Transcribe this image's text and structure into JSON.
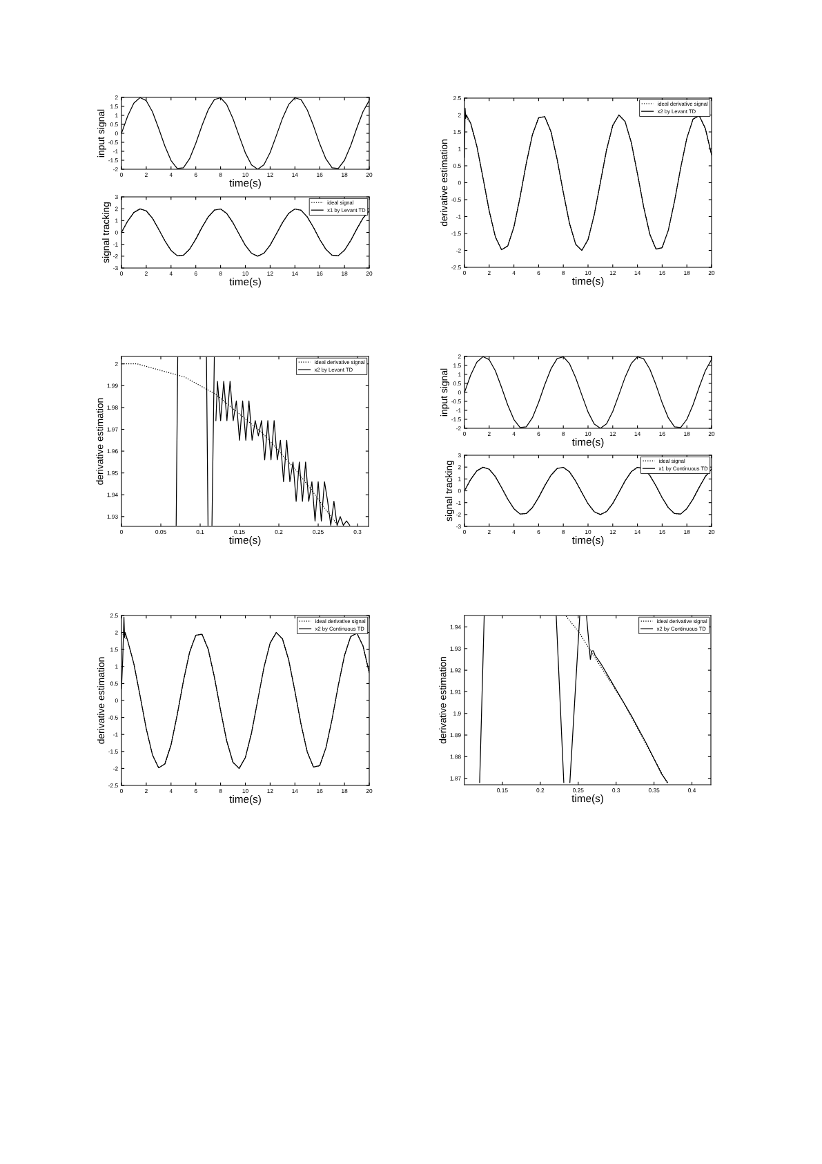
{
  "chart_data": [
    {
      "type": "line",
      "xlabel": "time(s)",
      "ylabel": "input signal",
      "xlim": [
        0,
        20
      ],
      "xticks": [
        0,
        2,
        4,
        6,
        8,
        10,
        12,
        14,
        16,
        18,
        20
      ],
      "ylim": [
        -2,
        2
      ],
      "yticks": [
        -2,
        -1.5,
        -1,
        -0.5,
        0,
        0.5,
        1,
        1.5,
        2
      ],
      "marker": "none",
      "x": [
        0,
        0.5,
        1,
        1.5,
        2,
        2.5,
        3,
        3.5,
        4,
        4.5,
        5,
        5.5,
        6,
        6.5,
        7,
        7.5,
        8,
        8.5,
        9,
        9.5,
        10,
        10.5,
        11,
        11.5,
        12,
        12.5,
        13,
        13.5,
        14,
        14.5,
        15,
        15.5,
        16,
        16.5,
        17,
        17.5,
        18,
        18.5,
        19,
        19.5,
        20
      ],
      "series": [
        {
          "color": "#000000",
          "line_style": "solid",
          "values": [
            0,
            0.96,
            1.68,
            1.99,
            1.82,
            1.2,
            0.28,
            -0.7,
            -1.51,
            -1.96,
            -1.92,
            -1.41,
            -0.56,
            0.43,
            1.31,
            1.88,
            1.98,
            1.6,
            0.82,
            -0.15,
            -1.09,
            -1.76,
            -2.0,
            -1.75,
            -1.07,
            -0.13,
            0.84,
            1.61,
            1.98,
            1.87,
            1.3,
            0.42,
            -0.58,
            -1.42,
            -1.92,
            -1.96,
            -1.5,
            -0.69,
            0.3,
            1.21,
            1.83
          ]
        }
      ]
    },
    {
      "type": "line",
      "xlabel": "time(s)",
      "ylabel": "signal tracking",
      "xlim": [
        0,
        20
      ],
      "xticks": [
        0,
        2,
        4,
        6,
        8,
        10,
        12,
        14,
        16,
        18,
        20
      ],
      "ylim": [
        -3,
        3
      ],
      "yticks": [
        -3,
        -2,
        -1,
        0,
        1,
        2,
        3
      ],
      "marker": "none",
      "legend": "top right",
      "x": [
        0,
        0.5,
        1,
        1.5,
        2,
        2.5,
        3,
        3.5,
        4,
        4.5,
        5,
        5.5,
        6,
        6.5,
        7,
        7.5,
        8,
        8.5,
        9,
        9.5,
        10,
        10.5,
        11,
        11.5,
        12,
        12.5,
        13,
        13.5,
        14,
        14.5,
        15,
        15.5,
        16,
        16.5,
        17,
        17.5,
        18,
        18.5,
        19,
        19.5,
        20
      ],
      "series": [
        {
          "name": "ideal signal",
          "color": "#000000",
          "line_style": "dotted",
          "values": [
            0,
            0.96,
            1.68,
            1.99,
            1.82,
            1.2,
            0.28,
            -0.7,
            -1.51,
            -1.96,
            -1.92,
            -1.41,
            -0.56,
            0.43,
            1.31,
            1.88,
            1.98,
            1.6,
            0.82,
            -0.15,
            -1.09,
            -1.76,
            -2.0,
            -1.75,
            -1.07,
            -0.13,
            0.84,
            1.61,
            1.98,
            1.87,
            1.3,
            0.42,
            -0.58,
            -1.42,
            -1.92,
            -1.96,
            -1.5,
            -0.69,
            0.3,
            1.21,
            1.83
          ]
        },
        {
          "name": "x1 by Levant TD",
          "color": "#000000",
          "line_style": "solid",
          "values": [
            0,
            0.96,
            1.68,
            1.99,
            1.82,
            1.2,
            0.28,
            -0.7,
            -1.51,
            -1.96,
            -1.92,
            -1.41,
            -0.56,
            0.43,
            1.31,
            1.88,
            1.98,
            1.6,
            0.82,
            -0.15,
            -1.09,
            -1.76,
            -2.0,
            -1.75,
            -1.07,
            -0.13,
            0.84,
            1.61,
            1.98,
            1.87,
            1.3,
            0.42,
            -0.58,
            -1.42,
            -1.92,
            -1.96,
            -1.5,
            -0.69,
            0.3,
            1.21,
            1.83
          ]
        }
      ]
    },
    {
      "type": "line",
      "xlabel": "time(s)",
      "ylabel": "derivative estimation",
      "xlim": [
        0,
        20
      ],
      "xticks": [
        0,
        2,
        4,
        6,
        8,
        10,
        12,
        14,
        16,
        18,
        20
      ],
      "ylim": [
        -2.5,
        2.5
      ],
      "yticks": [
        -2.5,
        -2,
        -1.5,
        -1,
        -0.5,
        0,
        0.5,
        1,
        1.5,
        2,
        2.5
      ],
      "marker": "none",
      "legend": "top right",
      "x": [
        0,
        0.5,
        1,
        1.5,
        2,
        2.5,
        3,
        3.5,
        4,
        4.5,
        5,
        5.5,
        6,
        6.5,
        7,
        7.5,
        8,
        8.5,
        9,
        9.5,
        10,
        10.5,
        11,
        11.5,
        12,
        12.5,
        13,
        13.5,
        14,
        14.5,
        15,
        15.5,
        16,
        16.5,
        17,
        17.5,
        18,
        18.5,
        19,
        19.5,
        20
      ],
      "series": [
        {
          "name": "ideal derivative signal",
          "color": "#000000",
          "line_style": "dotted",
          "values": [
            2,
            1.76,
            1.08,
            0.14,
            -0.83,
            -1.6,
            -1.98,
            -1.87,
            -1.31,
            -0.42,
            0.57,
            1.42,
            1.92,
            1.95,
            1.51,
            0.69,
            -0.29,
            -1.2,
            -1.82,
            -2.0,
            -1.68,
            -0.95,
            0.01,
            0.97,
            1.69,
            2.0,
            1.81,
            1.19,
            0.27,
            -0.71,
            -1.52,
            -1.96,
            -1.92,
            -1.4,
            -0.55,
            0.44,
            1.32,
            1.88,
            1.98,
            1.6,
            0.82
          ]
        },
        {
          "name": "x2 by Levant TD",
          "color": "#000000",
          "line_style": "solid",
          "x": [
            0,
            0.05,
            0.1,
            0.15,
            0.5,
            1,
            1.5,
            2,
            2.5,
            3,
            3.5,
            4,
            4.5,
            5,
            5.5,
            6,
            6.5,
            7,
            7.5,
            8,
            8.5,
            9,
            9.5,
            10,
            10.5,
            11,
            11.5,
            12,
            12.5,
            13,
            13.5,
            14,
            14.5,
            15,
            15.5,
            16,
            16.5,
            17,
            17.5,
            18,
            18.5,
            19,
            19.5,
            20
          ],
          "values": [
            0.75,
            2.2,
            1.9,
            2.0,
            1.76,
            1.08,
            0.14,
            -0.83,
            -1.6,
            -1.98,
            -1.87,
            -1.31,
            -0.42,
            0.57,
            1.42,
            1.92,
            1.95,
            1.51,
            0.69,
            -0.29,
            -1.2,
            -1.82,
            -2.0,
            -1.68,
            -0.95,
            0.01,
            0.97,
            1.69,
            2.0,
            1.81,
            1.19,
            0.27,
            -0.71,
            -1.52,
            -1.96,
            -1.92,
            -1.4,
            -0.55,
            0.44,
            1.32,
            1.88,
            1.98,
            1.6,
            0.82
          ]
        }
      ]
    },
    {
      "type": "line",
      "xlabel": "time(s)",
      "ylabel": "derivative estimation",
      "xlim": [
        0,
        0.314
      ],
      "xticks": [
        0,
        0.05,
        0.1,
        0.15,
        0.2,
        0.25,
        0.3
      ],
      "ylim": [
        1.9255,
        2.0034
      ],
      "yticks": [
        1.93,
        1.94,
        1.95,
        1.96,
        1.97,
        1.98,
        1.99,
        2
      ],
      "marker": "none",
      "legend": "top right",
      "series": [
        {
          "name": "ideal derivative signal",
          "color": "#000000",
          "line_style": "dotted",
          "x": [
            0,
            0.02,
            0.04,
            0.06,
            0.08,
            0.1,
            0.12,
            0.14,
            0.16,
            0.18,
            0.2,
            0.22,
            0.24,
            0.26,
            0.275
          ],
          "values": [
            2.0,
            2.0,
            1.998,
            1.996,
            1.994,
            1.99,
            1.986,
            1.98,
            1.974,
            1.968,
            1.96,
            1.952,
            1.943,
            1.933,
            1.926
          ]
        },
        {
          "name": "x2 by Levant TD",
          "color": "#000000",
          "line_style": "solid",
          "x": [
            0.0695,
            0.0715,
            0.09,
            0.108,
            0.11,
            0.112,
            0.115,
            0.118,
            0.119,
            0.12,
            0.122,
            0.126,
            0.13,
            0.134,
            0.138,
            0.142,
            0.146,
            0.15,
            0.154,
            0.158,
            0.162,
            0.166,
            0.17,
            0.174,
            0.178,
            0.182,
            0.186,
            0.19,
            0.194,
            0.198,
            0.202,
            0.206,
            0.21,
            0.214,
            0.218,
            0.222,
            0.226,
            0.23,
            0.234,
            0.238,
            0.242,
            0.246,
            0.25,
            0.254,
            0.258,
            0.262,
            0.266,
            0.27,
            0.274,
            0.278,
            0.282,
            0.286,
            0.29
          ],
          "values": [
            1.926,
            2.003,
            null,
            2.003,
            1.926,
            null,
            1.926,
            2.003,
            null,
            1.974,
            1.992,
            1.974,
            1.992,
            1.974,
            1.992,
            1.974,
            1.983,
            1.965,
            1.983,
            1.965,
            1.983,
            1.965,
            1.974,
            1.967,
            1.974,
            1.956,
            1.974,
            1.956,
            1.974,
            1.956,
            1.965,
            1.946,
            1.965,
            1.946,
            1.955,
            1.937,
            1.955,
            1.937,
            1.955,
            1.937,
            1.946,
            1.928,
            1.946,
            1.928,
            1.946,
            1.937,
            1.926,
            1.937,
            1.926,
            1.93,
            1.926,
            1.928,
            1.926
          ]
        }
      ]
    },
    {
      "type": "line",
      "xlabel": "time(s)",
      "ylabel": "input signal",
      "xlim": [
        0,
        20
      ],
      "xticks": [
        0,
        2,
        4,
        6,
        8,
        10,
        12,
        14,
        16,
        18,
        20
      ],
      "ylim": [
        -2,
        2
      ],
      "yticks": [
        -2,
        -1.5,
        -1,
        -0.5,
        0,
        0.5,
        1,
        1.5,
        2
      ],
      "marker": "none",
      "x": [
        0,
        0.5,
        1,
        1.5,
        2,
        2.5,
        3,
        3.5,
        4,
        4.5,
        5,
        5.5,
        6,
        6.5,
        7,
        7.5,
        8,
        8.5,
        9,
        9.5,
        10,
        10.5,
        11,
        11.5,
        12,
        12.5,
        13,
        13.5,
        14,
        14.5,
        15,
        15.5,
        16,
        16.5,
        17,
        17.5,
        18,
        18.5,
        19,
        19.5,
        20
      ],
      "series": [
        {
          "color": "#000000",
          "line_style": "solid",
          "values": [
            0,
            0.96,
            1.68,
            1.99,
            1.82,
            1.2,
            0.28,
            -0.7,
            -1.51,
            -1.96,
            -1.92,
            -1.41,
            -0.56,
            0.43,
            1.31,
            1.88,
            1.98,
            1.6,
            0.82,
            -0.15,
            -1.09,
            -1.76,
            -2.0,
            -1.75,
            -1.07,
            -0.13,
            0.84,
            1.61,
            1.98,
            1.87,
            1.3,
            0.42,
            -0.58,
            -1.42,
            -1.92,
            -1.96,
            -1.5,
            -0.69,
            0.3,
            1.21,
            1.83
          ]
        }
      ]
    },
    {
      "type": "line",
      "xlabel": "time(s)",
      "ylabel": "signal tracking",
      "xlim": [
        0,
        20
      ],
      "xticks": [
        0,
        2,
        4,
        6,
        8,
        10,
        12,
        14,
        16,
        18,
        20
      ],
      "ylim": [
        -3,
        3
      ],
      "yticks": [
        -3,
        -2,
        -1,
        0,
        1,
        2,
        3
      ],
      "marker": "none",
      "legend": "top right",
      "x": [
        0,
        0.5,
        1,
        1.5,
        2,
        2.5,
        3,
        3.5,
        4,
        4.5,
        5,
        5.5,
        6,
        6.5,
        7,
        7.5,
        8,
        8.5,
        9,
        9.5,
        10,
        10.5,
        11,
        11.5,
        12,
        12.5,
        13,
        13.5,
        14,
        14.5,
        15,
        15.5,
        16,
        16.5,
        17,
        17.5,
        18,
        18.5,
        19,
        19.5,
        20
      ],
      "series": [
        {
          "name": "ideal signal",
          "color": "#000000",
          "line_style": "dotted",
          "values": [
            0,
            0.96,
            1.68,
            1.99,
            1.82,
            1.2,
            0.28,
            -0.7,
            -1.51,
            -1.96,
            -1.92,
            -1.41,
            -0.56,
            0.43,
            1.31,
            1.88,
            1.98,
            1.6,
            0.82,
            -0.15,
            -1.09,
            -1.76,
            -2.0,
            -1.75,
            -1.07,
            -0.13,
            0.84,
            1.61,
            1.98,
            1.87,
            1.3,
            0.42,
            -0.58,
            -1.42,
            -1.92,
            -1.96,
            -1.5,
            -0.69,
            0.3,
            1.21,
            1.83
          ]
        },
        {
          "name": "x1 by Continuous TD",
          "color": "#000000",
          "line_style": "solid",
          "values": [
            0,
            0.96,
            1.68,
            1.99,
            1.82,
            1.2,
            0.28,
            -0.7,
            -1.51,
            -1.96,
            -1.92,
            -1.41,
            -0.56,
            0.43,
            1.31,
            1.88,
            1.98,
            1.6,
            0.82,
            -0.15,
            -1.09,
            -1.76,
            -2.0,
            -1.75,
            -1.07,
            -0.13,
            0.84,
            1.61,
            1.98,
            1.87,
            1.3,
            0.42,
            -0.58,
            -1.42,
            -1.92,
            -1.96,
            -1.5,
            -0.69,
            0.3,
            1.21,
            1.83
          ]
        }
      ]
    },
    {
      "type": "line",
      "xlabel": "time(s)",
      "ylabel": "derivative estimation",
      "xlim": [
        0,
        20
      ],
      "xticks": [
        0,
        2,
        4,
        6,
        8,
        10,
        12,
        14,
        16,
        18,
        20
      ],
      "ylim": [
        -2.5,
        2.5
      ],
      "yticks": [
        -2.5,
        -2,
        -1.5,
        -1,
        -0.5,
        0,
        0.5,
        1,
        1.5,
        2,
        2.5
      ],
      "marker": "none",
      "legend": "top right",
      "x": [
        0,
        0.5,
        1,
        1.5,
        2,
        2.5,
        3,
        3.5,
        4,
        4.5,
        5,
        5.5,
        6,
        6.5,
        7,
        7.5,
        8,
        8.5,
        9,
        9.5,
        10,
        10.5,
        11,
        11.5,
        12,
        12.5,
        13,
        13.5,
        14,
        14.5,
        15,
        15.5,
        16,
        16.5,
        17,
        17.5,
        18,
        18.5,
        19,
        19.5,
        20
      ],
      "series": [
        {
          "name": "ideal derivative signal",
          "color": "#000000",
          "line_style": "dotted",
          "values": [
            2,
            1.76,
            1.08,
            0.14,
            -0.83,
            -1.6,
            -1.98,
            -1.87,
            -1.31,
            -0.42,
            0.57,
            1.42,
            1.92,
            1.95,
            1.51,
            0.69,
            -0.29,
            -1.2,
            -1.82,
            -2.0,
            -1.68,
            -0.95,
            0.01,
            0.97,
            1.69,
            2.0,
            1.81,
            1.19,
            0.27,
            -0.71,
            -1.52,
            -1.96,
            -1.92,
            -1.4,
            -0.55,
            0.44,
            1.32,
            1.88,
            1.98,
            1.6,
            0.82
          ]
        },
        {
          "name": "x2 by Continuous TD",
          "color": "#000000",
          "line_style": "solid",
          "x": [
            0,
            0.1,
            0.2,
            0.25,
            0.3,
            0.5,
            1,
            1.5,
            2,
            2.5,
            3,
            3.5,
            4,
            4.5,
            5,
            5.5,
            6,
            6.5,
            7,
            7.5,
            8,
            8.5,
            9,
            9.5,
            10,
            10.5,
            11,
            11.5,
            12,
            12.5,
            13,
            13.5,
            14,
            14.5,
            15,
            15.5,
            16,
            16.5,
            17,
            17.5,
            18,
            18.5,
            19,
            19.5,
            20
          ],
          "values": [
            0.35,
            1.2,
            2.45,
            1.85,
            2.0,
            1.76,
            1.08,
            0.14,
            -0.83,
            -1.6,
            -1.98,
            -1.87,
            -1.31,
            -0.42,
            0.57,
            1.42,
            1.92,
            1.95,
            1.51,
            0.69,
            -0.29,
            -1.2,
            -1.82,
            -2.0,
            -1.68,
            -0.95,
            0.01,
            0.97,
            1.69,
            2.0,
            1.81,
            1.19,
            0.27,
            -0.71,
            -1.52,
            -1.96,
            -1.92,
            -1.4,
            -0.55,
            0.44,
            1.32,
            1.88,
            1.98,
            1.6,
            0.82
          ]
        }
      ]
    },
    {
      "type": "line",
      "xlabel": "time(s)",
      "ylabel": "derivative estimation",
      "xlim": [
        0.1,
        0.425
      ],
      "xticks": [
        0.15,
        0.2,
        0.25,
        0.3,
        0.35,
        0.4
      ],
      "ylim": [
        1.867,
        1.9453
      ],
      "yticks": [
        1.87,
        1.88,
        1.89,
        1.9,
        1.91,
        1.92,
        1.93,
        1.94
      ],
      "marker": "none",
      "legend": "top right",
      "series": [
        {
          "name": "ideal derivative signal",
          "color": "#000000",
          "line_style": "dotted",
          "x": [
            0.234,
            0.25,
            0.27,
            0.29,
            0.31,
            0.33,
            0.35,
            0.367
          ],
          "values": [
            1.945,
            1.938,
            1.927,
            1.916,
            1.905,
            1.892,
            1.879,
            1.868
          ]
        },
        {
          "name": "x2 by Continuous TD",
          "color": "#000000",
          "line_style": "solid",
          "x": [
            0.12,
            0.126,
            0.17,
            0.221,
            0.231,
            0.235,
            0.239,
            0.252,
            0.256,
            0.261,
            0.266,
            0.268,
            0.27,
            0.272,
            0.28,
            0.3,
            0.32,
            0.34,
            0.36,
            0.368
          ],
          "values": [
            1.868,
            1.945,
            null,
            1.945,
            1.868,
            null,
            1.868,
            1.945,
            null,
            1.945,
            1.925,
            1.929,
            1.929,
            1.927,
            1.923,
            1.911,
            1.899,
            1.886,
            1.872,
            1.868
          ]
        }
      ]
    }
  ]
}
